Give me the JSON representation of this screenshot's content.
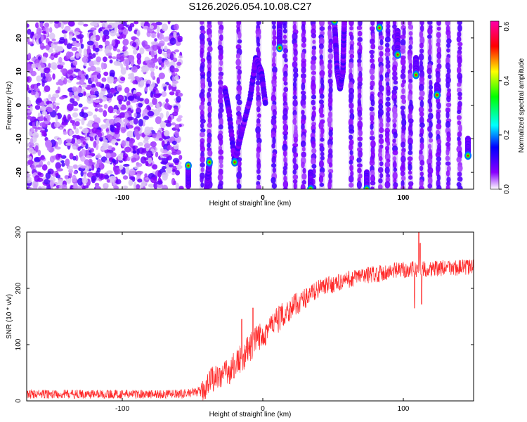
{
  "title": "S126.2026.054.10.08.C27",
  "chart_data": [
    {
      "type": "heatmap",
      "name": "spectrogram",
      "xlabel": "Height of straight line (km)",
      "ylabel": "Frequency (Hz)",
      "xlim": [
        -168,
        150
      ],
      "ylim": [
        -25,
        25
      ],
      "xticks": [
        -100,
        0,
        100
      ],
      "xtick_labels": [
        "-100",
        "0",
        "100"
      ],
      "yticks": [
        -20,
        -10,
        0,
        10,
        20
      ],
      "ytick_labels": [
        "-20",
        "-10",
        "0",
        "10",
        "20"
      ],
      "colorbar": {
        "label": "Normalized spectral amplitude",
        "range": [
          0.0,
          0.62
        ],
        "ticks": [
          0.0,
          0.2,
          0.4,
          0.6
        ],
        "tick_labels": [
          "0.0",
          "0.2",
          "0.4",
          "0.6"
        ],
        "colors": [
          "#ffffff",
          "#8800ff",
          "#0000ff",
          "#00ffff",
          "#00ff00",
          "#ffff00",
          "#ff0000",
          "#ff00aa"
        ]
      },
      "noise_region_x": [
        -168,
        -58
      ],
      "tracks": [
        {
          "points": [
            [
              -53,
              -24
            ],
            [
              -53,
              -18
            ]
          ],
          "strength": 0.5
        },
        {
          "points": [
            [
              -40,
              -25
            ],
            [
              -38,
              -17
            ]
          ],
          "strength": 0.45
        },
        {
          "points": [
            [
              -27,
              5
            ],
            [
              -24,
              -2
            ],
            [
              -20,
              -17
            ],
            [
              -15,
              -8
            ],
            [
              -9,
              2
            ],
            [
              -5,
              14
            ],
            [
              -1,
              10
            ],
            [
              2,
              0
            ]
          ],
          "strength": 0.55
        },
        {
          "points": [
            [
              12,
              25
            ],
            [
              12,
              17
            ]
          ],
          "strength": 0.4
        },
        {
          "points": [
            [
              34,
              -20
            ],
            [
              34,
              -25
            ]
          ],
          "strength": 0.5
        },
        {
          "points": [
            [
              51,
              25
            ],
            [
              53,
              10
            ],
            [
              55,
              5
            ],
            [
              57,
              10
            ],
            [
              58,
              25
            ]
          ],
          "strength": 0.55
        },
        {
          "points": [
            [
              74,
              -20
            ],
            [
              74,
              -25
            ]
          ],
          "strength": 0.5
        },
        {
          "points": [
            [
              83,
              25
            ],
            [
              83,
              23
            ]
          ],
          "strength": 0.5
        },
        {
          "points": [
            [
              96,
              22
            ],
            [
              96,
              15
            ]
          ],
          "strength": 0.45
        },
        {
          "points": [
            [
              109,
              14
            ],
            [
              109,
              9
            ]
          ],
          "strength": 0.45
        },
        {
          "points": [
            [
              124,
              6
            ],
            [
              124,
              3
            ]
          ],
          "strength": 0.45
        },
        {
          "points": [
            [
              146,
              -10
            ],
            [
              146,
              -15
            ]
          ],
          "strength": 0.45
        }
      ],
      "stripes_x": [
        -43,
        -38,
        -30,
        -17,
        -3,
        8,
        16,
        23,
        29,
        36,
        42,
        48,
        63,
        69,
        78,
        84,
        89,
        94,
        100,
        105,
        113,
        119,
        125,
        132,
        140
      ]
    },
    {
      "type": "line",
      "name": "snr",
      "xlabel": "Height of straight line (km)",
      "ylabel": "SNR (10 * v/v)",
      "xlim": [
        -168,
        150
      ],
      "ylim": [
        0,
        300
      ],
      "xticks": [
        -100,
        0,
        100
      ],
      "xtick_labels": [
        "-100",
        "0",
        "100"
      ],
      "yticks": [
        0,
        100,
        200,
        300
      ],
      "ytick_labels": [
        "0",
        "100",
        "200",
        "300"
      ],
      "color": "#ff2a2a",
      "trend": [
        [
          -168,
          12
        ],
        [
          -58,
          12
        ],
        [
          -42,
          18
        ],
        [
          -38,
          38
        ],
        [
          -25,
          50
        ],
        [
          -12,
          85
        ],
        [
          0,
          120
        ],
        [
          20,
          165
        ],
        [
          40,
          200
        ],
        [
          70,
          222
        ],
        [
          100,
          233
        ],
        [
          150,
          238
        ]
      ],
      "noise_amplitude": [
        [
          -168,
          8
        ],
        [
          -45,
          8
        ],
        [
          -42,
          22
        ],
        [
          -5,
          28
        ],
        [
          40,
          16
        ],
        [
          150,
          14
        ]
      ],
      "spikes": [
        [
          -15,
          145
        ],
        [
          -7,
          165
        ],
        [
          108,
          165
        ],
        [
          111,
          300
        ],
        [
          112,
          280
        ],
        [
          113,
          172
        ]
      ]
    }
  ]
}
